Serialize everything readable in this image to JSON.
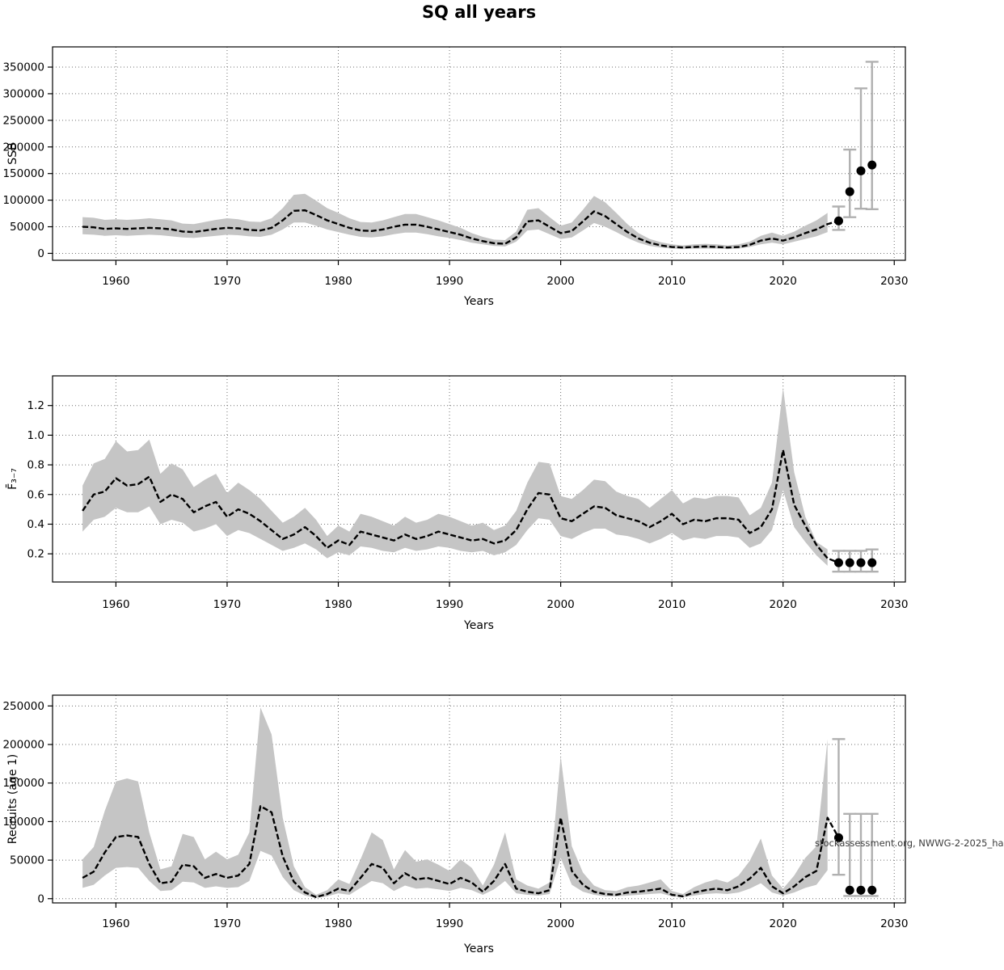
{
  "title": "SQ all years",
  "watermark": "stockassessment.org, NWWG-2-2025_ha",
  "chart_data": [
    {
      "type": "area",
      "name": "ssb",
      "ylabel": "SSB",
      "xlabel": "Years",
      "grid": true,
      "xlim": [
        1954.3,
        2031.0
      ],
      "ylim": [
        -13000,
        388000
      ],
      "x_ticks": [
        1960,
        1970,
        1980,
        1990,
        2000,
        2010,
        2020,
        2030
      ],
      "x_tick_labels": [
        "1960",
        "1970",
        "1980",
        "1990",
        "2000",
        "2010",
        "2020",
        "2030"
      ],
      "y_ticks": [
        0,
        50000,
        100000,
        150000,
        200000,
        250000,
        300000,
        350000
      ],
      "y_tick_labels": [
        "0",
        "50000",
        "100000",
        "150000",
        "200000",
        "250000",
        "300000",
        "350000"
      ],
      "years": [
        1957,
        1958,
        1959,
        1960,
        1961,
        1962,
        1963,
        1964,
        1965,
        1966,
        1967,
        1968,
        1969,
        1970,
        1971,
        1972,
        1973,
        1974,
        1975,
        1976,
        1977,
        1978,
        1979,
        1980,
        1981,
        1982,
        1983,
        1984,
        1985,
        1986,
        1987,
        1988,
        1989,
        1990,
        1991,
        1992,
        1993,
        1994,
        1995,
        1996,
        1997,
        1998,
        1999,
        2000,
        2001,
        2002,
        2003,
        2004,
        2005,
        2006,
        2007,
        2008,
        2009,
        2010,
        2011,
        2012,
        2013,
        2014,
        2015,
        2016,
        2017,
        2018,
        2019,
        2020,
        2021,
        2022,
        2023,
        2024
      ],
      "est": [
        50000,
        49000,
        46000,
        47000,
        46000,
        47000,
        48000,
        47000,
        45000,
        41000,
        40000,
        43000,
        46000,
        48000,
        47000,
        44000,
        43000,
        48000,
        62000,
        80000,
        81000,
        72000,
        62000,
        55000,
        48000,
        43000,
        42000,
        45000,
        50000,
        54000,
        54000,
        50000,
        45000,
        40000,
        35000,
        28000,
        23000,
        19000,
        18000,
        30000,
        60000,
        62000,
        50000,
        38000,
        42000,
        60000,
        79000,
        70000,
        55000,
        40000,
        28000,
        20000,
        15000,
        12000,
        11000,
        12000,
        13000,
        12000,
        11000,
        12000,
        16000,
        24000,
        28000,
        24000,
        30000,
        38000,
        45000,
        55000
      ],
      "lo": [
        36000,
        35000,
        33000,
        34000,
        33000,
        34000,
        35000,
        34000,
        32000,
        30000,
        29000,
        31000,
        33000,
        35000,
        34000,
        32000,
        31000,
        35000,
        45000,
        58000,
        58000,
        52000,
        45000,
        40000,
        35000,
        31000,
        30000,
        32000,
        36000,
        39000,
        39000,
        36000,
        32000,
        29000,
        25000,
        20000,
        17000,
        14000,
        13000,
        22000,
        43000,
        45000,
        36000,
        27000,
        30000,
        43000,
        57000,
        50000,
        40000,
        29000,
        20000,
        14000,
        11000,
        9000,
        8000,
        9000,
        9000,
        9000,
        8000,
        9000,
        12000,
        17000,
        20000,
        17000,
        22000,
        27000,
        32000,
        40000
      ],
      "hi": [
        68000,
        67000,
        63000,
        64000,
        63000,
        64000,
        66000,
        64000,
        62000,
        56000,
        55000,
        59000,
        63000,
        66000,
        64000,
        60000,
        59000,
        66000,
        85000,
        110000,
        112000,
        99000,
        85000,
        76000,
        66000,
        59000,
        58000,
        62000,
        68000,
        74000,
        74000,
        68000,
        62000,
        55000,
        48000,
        38000,
        31000,
        26000,
        25000,
        41000,
        82000,
        85000,
        68000,
        52000,
        58000,
        82000,
        108000,
        96000,
        76000,
        55000,
        38000,
        27000,
        21000,
        17000,
        15000,
        17000,
        18000,
        17000,
        15000,
        17000,
        22000,
        33000,
        39000,
        33000,
        41000,
        52000,
        62000,
        76000
      ],
      "forecast": {
        "years": [
          2025,
          2026,
          2027,
          2028
        ],
        "est": [
          61000,
          116000,
          155000,
          166000
        ],
        "lo": [
          44000,
          68000,
          84000,
          83000
        ],
        "hi": [
          88000,
          195000,
          310000,
          360000
        ]
      }
    },
    {
      "type": "area",
      "name": "fbar",
      "ylabel": "F̄₃₋₇",
      "xlabel": "Years",
      "grid": true,
      "xlim": [
        1954.3,
        2031.0
      ],
      "ylim": [
        0.01,
        1.4
      ],
      "x_ticks": [
        1960,
        1970,
        1980,
        1990,
        2000,
        2010,
        2020,
        2030
      ],
      "x_tick_labels": [
        "1960",
        "1970",
        "1980",
        "1990",
        "2000",
        "2010",
        "2020",
        "2030"
      ],
      "y_ticks": [
        0.2,
        0.4,
        0.6,
        0.8,
        1.0,
        1.2
      ],
      "y_tick_labels": [
        "0.2",
        "0.4",
        "0.6",
        "0.8",
        "1.0",
        "1.2"
      ],
      "years": [
        1957,
        1958,
        1959,
        1960,
        1961,
        1962,
        1963,
        1964,
        1965,
        1966,
        1967,
        1968,
        1969,
        1970,
        1971,
        1972,
        1973,
        1974,
        1975,
        1976,
        1977,
        1978,
        1979,
        1980,
        1981,
        1982,
        1983,
        1984,
        1985,
        1986,
        1987,
        1988,
        1989,
        1990,
        1991,
        1992,
        1993,
        1994,
        1995,
        1996,
        1997,
        1998,
        1999,
        2000,
        2001,
        2002,
        2003,
        2004,
        2005,
        2006,
        2007,
        2008,
        2009,
        2010,
        2011,
        2012,
        2013,
        2014,
        2015,
        2016,
        2017,
        2018,
        2019,
        2020,
        2021,
        2022,
        2023,
        2024
      ],
      "est": [
        0.49,
        0.6,
        0.62,
        0.71,
        0.66,
        0.67,
        0.72,
        0.55,
        0.6,
        0.57,
        0.48,
        0.52,
        0.55,
        0.45,
        0.5,
        0.47,
        0.42,
        0.36,
        0.3,
        0.33,
        0.38,
        0.32,
        0.24,
        0.29,
        0.26,
        0.35,
        0.33,
        0.31,
        0.29,
        0.33,
        0.3,
        0.32,
        0.35,
        0.33,
        0.31,
        0.29,
        0.3,
        0.27,
        0.29,
        0.36,
        0.5,
        0.61,
        0.6,
        0.44,
        0.42,
        0.47,
        0.52,
        0.51,
        0.46,
        0.44,
        0.42,
        0.38,
        0.42,
        0.47,
        0.4,
        0.43,
        0.42,
        0.44,
        0.44,
        0.43,
        0.34,
        0.38,
        0.5,
        0.9,
        0.53,
        0.39,
        0.26,
        0.17
      ],
      "lo": [
        0.35,
        0.43,
        0.45,
        0.51,
        0.48,
        0.48,
        0.52,
        0.4,
        0.43,
        0.41,
        0.35,
        0.37,
        0.4,
        0.32,
        0.36,
        0.34,
        0.3,
        0.26,
        0.22,
        0.24,
        0.27,
        0.23,
        0.17,
        0.21,
        0.19,
        0.25,
        0.24,
        0.22,
        0.21,
        0.24,
        0.22,
        0.23,
        0.25,
        0.24,
        0.22,
        0.21,
        0.22,
        0.19,
        0.21,
        0.26,
        0.36,
        0.44,
        0.43,
        0.32,
        0.3,
        0.34,
        0.37,
        0.37,
        0.33,
        0.32,
        0.3,
        0.27,
        0.3,
        0.34,
        0.29,
        0.31,
        0.3,
        0.32,
        0.32,
        0.31,
        0.24,
        0.27,
        0.36,
        0.63,
        0.38,
        0.28,
        0.19,
        0.12
      ],
      "hi": [
        0.66,
        0.81,
        0.84,
        0.96,
        0.89,
        0.9,
        0.97,
        0.74,
        0.81,
        0.77,
        0.65,
        0.7,
        0.74,
        0.61,
        0.68,
        0.63,
        0.57,
        0.49,
        0.41,
        0.45,
        0.51,
        0.43,
        0.32,
        0.39,
        0.35,
        0.47,
        0.45,
        0.42,
        0.39,
        0.45,
        0.41,
        0.43,
        0.47,
        0.45,
        0.42,
        0.39,
        0.41,
        0.36,
        0.39,
        0.49,
        0.68,
        0.82,
        0.81,
        0.59,
        0.57,
        0.63,
        0.7,
        0.69,
        0.62,
        0.59,
        0.57,
        0.51,
        0.57,
        0.63,
        0.54,
        0.58,
        0.57,
        0.59,
        0.59,
        0.58,
        0.46,
        0.51,
        0.68,
        1.32,
        0.75,
        0.45,
        0.28,
        0.23
      ],
      "forecast": {
        "years": [
          2025,
          2026,
          2027,
          2028
        ],
        "est": [
          0.14,
          0.14,
          0.14,
          0.14
        ],
        "lo": [
          0.08,
          0.08,
          0.08,
          0.08
        ],
        "hi": [
          0.22,
          0.22,
          0.22,
          0.23
        ]
      }
    },
    {
      "type": "area",
      "name": "recruits",
      "ylabel": "Recruits (age 1)",
      "xlabel": "Years",
      "grid": true,
      "xlim": [
        1954.3,
        2031.0
      ],
      "ylim": [
        -5500,
        264000
      ],
      "x_ticks": [
        1960,
        1970,
        1980,
        1990,
        2000,
        2010,
        2020,
        2030
      ],
      "x_tick_labels": [
        "1960",
        "1970",
        "1980",
        "1990",
        "2000",
        "2010",
        "2020",
        "2030"
      ],
      "y_ticks": [
        0,
        50000,
        100000,
        150000,
        200000,
        250000
      ],
      "y_tick_labels": [
        "0",
        "50000",
        "100000",
        "150000",
        "200000",
        "250000"
      ],
      "years": [
        1957,
        1958,
        1959,
        1960,
        1961,
        1962,
        1963,
        1964,
        1965,
        1966,
        1967,
        1968,
        1969,
        1970,
        1971,
        1972,
        1973,
        1974,
        1975,
        1976,
        1977,
        1978,
        1979,
        1980,
        1981,
        1982,
        1983,
        1984,
        1985,
        1986,
        1987,
        1988,
        1989,
        1990,
        1991,
        1992,
        1993,
        1994,
        1995,
        1996,
        1997,
        1998,
        1999,
        2000,
        2001,
        2002,
        2003,
        2004,
        2005,
        2006,
        2007,
        2008,
        2009,
        2010,
        2011,
        2012,
        2013,
        2014,
        2015,
        2016,
        2017,
        2018,
        2019,
        2020,
        2021,
        2022,
        2023,
        2024
      ],
      "est": [
        27000,
        35000,
        60000,
        80000,
        82000,
        80000,
        45000,
        20000,
        22000,
        44000,
        42000,
        27000,
        32000,
        27000,
        30000,
        45000,
        120000,
        112000,
        55000,
        22000,
        8000,
        2000,
        6000,
        13000,
        10000,
        27000,
        45000,
        40000,
        20000,
        33000,
        25000,
        27000,
        23000,
        19000,
        27000,
        21000,
        9000,
        23000,
        45000,
        13000,
        9000,
        7000,
        11000,
        105000,
        36000,
        18000,
        9000,
        6000,
        5000,
        8000,
        9000,
        11000,
        13000,
        5000,
        3000,
        8000,
        11000,
        13000,
        11000,
        16000,
        26000,
        40000,
        16000,
        7000,
        16000,
        28000,
        36000,
        105000
      ],
      "lo": [
        14000,
        18000,
        30000,
        40000,
        41000,
        40000,
        23000,
        10000,
        11000,
        22000,
        21000,
        14000,
        16000,
        14000,
        15000,
        23000,
        62000,
        56000,
        28000,
        11000,
        4000,
        1000,
        3000,
        7000,
        5000,
        14000,
        23000,
        20000,
        10000,
        17000,
        13000,
        14000,
        12000,
        10000,
        14000,
        11000,
        5000,
        12000,
        23000,
        7000,
        5000,
        4000,
        6000,
        53000,
        18000,
        9000,
        5000,
        3000,
        3000,
        4000,
        5000,
        6000,
        7000,
        3000,
        2000,
        4000,
        6000,
        7000,
        6000,
        8000,
        13000,
        20000,
        8000,
        4000,
        8000,
        14000,
        18000,
        37000
      ],
      "hi": [
        51000,
        67000,
        114000,
        152000,
        156000,
        152000,
        86000,
        38000,
        42000,
        84000,
        80000,
        51000,
        61000,
        51000,
        57000,
        86000,
        248000,
        213000,
        105000,
        42000,
        15000,
        5000,
        11000,
        25000,
        19000,
        51000,
        86000,
        76000,
        38000,
        63000,
        48000,
        51000,
        44000,
        36000,
        51000,
        40000,
        17000,
        44000,
        86000,
        25000,
        17000,
        13000,
        21000,
        185000,
        68000,
        34000,
        17000,
        11000,
        10000,
        15000,
        17000,
        21000,
        25000,
        10000,
        6000,
        15000,
        21000,
        25000,
        21000,
        30000,
        49000,
        78000,
        30000,
        13000,
        30000,
        53000,
        68000,
        207000
      ],
      "forecast": {
        "years": [
          2025,
          2026,
          2027,
          2028
        ],
        "est": [
          79000,
          11000,
          11000,
          11000
        ],
        "lo": [
          31000,
          3500,
          3500,
          3500
        ],
        "hi": [
          207000,
          110000,
          110000,
          110000
        ]
      }
    }
  ]
}
